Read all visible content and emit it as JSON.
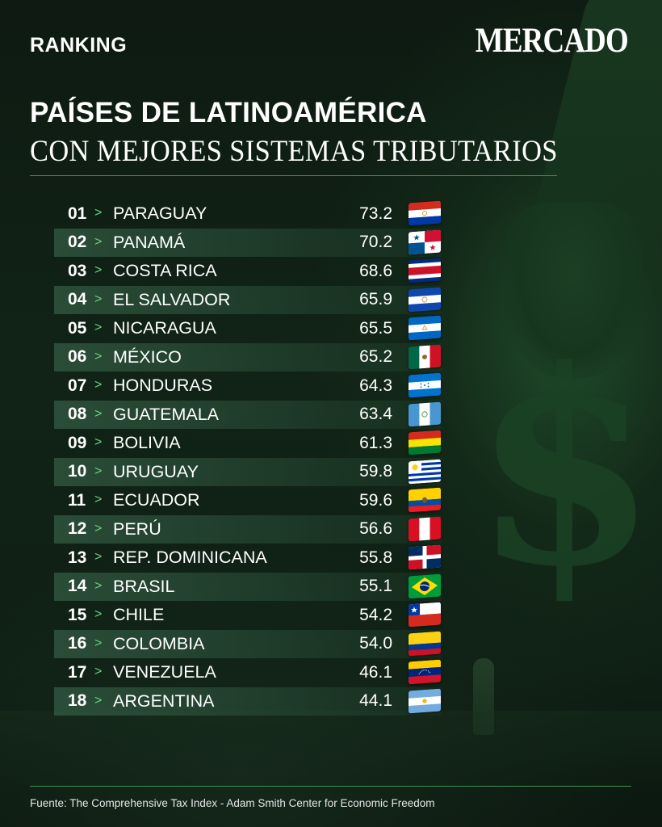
{
  "header": {
    "section_label": "RANKING",
    "brand": "MERCADO"
  },
  "title": {
    "line1": "PAÍSES DE LATINOAMÉRICA",
    "line2": "CON MEJORES SISTEMAS TRIBUTARIOS"
  },
  "ranking": [
    {
      "rank": "01",
      "country": "PARAGUAY",
      "score": "73.2",
      "flag": "paraguay-flag-icon"
    },
    {
      "rank": "02",
      "country": "PANAMÁ",
      "score": "70.2",
      "flag": "panama-flag-icon"
    },
    {
      "rank": "03",
      "country": "COSTA RICA",
      "score": "68.6",
      "flag": "costa-rica-flag-icon"
    },
    {
      "rank": "04",
      "country": "EL SALVADOR",
      "score": "65.9",
      "flag": "el-salvador-flag-icon"
    },
    {
      "rank": "05",
      "country": "NICARAGUA",
      "score": "65.5",
      "flag": "nicaragua-flag-icon"
    },
    {
      "rank": "06",
      "country": "MÉXICO",
      "score": "65.2",
      "flag": "mexico-flag-icon"
    },
    {
      "rank": "07",
      "country": "HONDURAS",
      "score": "64.3",
      "flag": "honduras-flag-icon"
    },
    {
      "rank": "08",
      "country": "GUATEMALA",
      "score": "63.4",
      "flag": "guatemala-flag-icon"
    },
    {
      "rank": "09",
      "country": "BOLIVIA",
      "score": "61.3",
      "flag": "bolivia-flag-icon"
    },
    {
      "rank": "10",
      "country": "URUGUAY",
      "score": "59.8",
      "flag": "uruguay-flag-icon"
    },
    {
      "rank": "11",
      "country": "ECUADOR",
      "score": "59.6",
      "flag": "ecuador-flag-icon"
    },
    {
      "rank": "12",
      "country": "PERÚ",
      "score": "56.6",
      "flag": "peru-flag-icon"
    },
    {
      "rank": "13",
      "country": "REP. DOMINICANA",
      "score": "55.8",
      "flag": "dominican-republic-flag-icon"
    },
    {
      "rank": "14",
      "country": "BRASIL",
      "score": "55.1",
      "flag": "brazil-flag-icon"
    },
    {
      "rank": "15",
      "country": "CHILE",
      "score": "54.2",
      "flag": "chile-flag-icon"
    },
    {
      "rank": "16",
      "country": "COLOMBIA",
      "score": "54.0",
      "flag": "colombia-flag-icon"
    },
    {
      "rank": "17",
      "country": "VENEZUELA",
      "score": "46.1",
      "flag": "venezuela-flag-icon"
    },
    {
      "rank": "18",
      "country": "ARGENTINA",
      "score": "44.1",
      "flag": "argentina-flag-icon"
    }
  ],
  "chevron": ">",
  "footer": {
    "source": "Fuente: The Comprehensive Tax Index - Adam Smith Center for Economic Freedom"
  },
  "colors": {
    "background": "#0d1a12",
    "accent_green": "#6fcf86",
    "rule_green": "#3f8f55",
    "text": "#ffffff"
  }
}
